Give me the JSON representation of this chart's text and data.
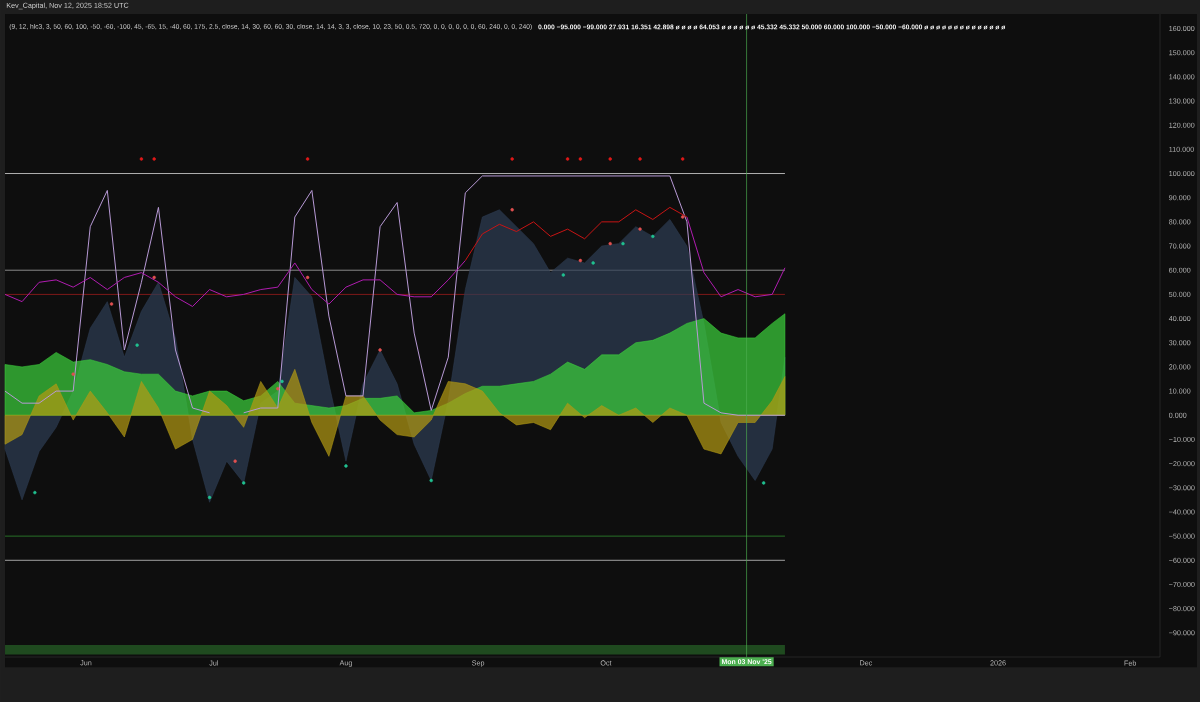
{
  "chart_data": {
    "type": "area",
    "title": "(9, 12, hlc3, 3, 50, 60, 100, -50, -60, -100, 45, -65, 15, -40, 60, 175, 2.5, close, 14, 30, 60, 60, 30, close, 14, 14, 3, 3, close, 10, 23, 50, 0.5, 720, 0, 0, 0, 0, 0, 0, 60, 240, 0, 0, 240)",
    "subtitle": "0.000 −95.000 −99.000 27.931 16.351 42.898 ø ø ø ø 64.053 ø ø ø ø ø ø 45.332 45.332 50.000 60.000 100.000 −50.000 −60.000 ø ø ø ø ø ø ø ø ø ø ø ø ø ø",
    "annotations": [
      "Kev_Capital, Nov 12, 2025 18:52 UTC"
    ],
    "x": [
      "2025-05-13",
      "2025-05-17",
      "2025-05-21",
      "2025-05-25",
      "2025-05-29",
      "2025-06-02",
      "2025-06-06",
      "2025-06-10",
      "2025-06-14",
      "2025-06-18",
      "2025-06-22",
      "2025-06-26",
      "2025-06-30",
      "2025-07-04",
      "2025-07-08",
      "2025-07-12",
      "2025-07-16",
      "2025-07-20",
      "2025-07-24",
      "2025-07-28",
      "2025-08-01",
      "2025-08-05",
      "2025-08-09",
      "2025-08-13",
      "2025-08-17",
      "2025-08-21",
      "2025-08-25",
      "2025-08-29",
      "2025-09-02",
      "2025-09-06",
      "2025-09-10",
      "2025-09-14",
      "2025-09-18",
      "2025-09-22",
      "2025-09-26",
      "2025-09-30",
      "2025-10-04",
      "2025-10-08",
      "2025-10-12",
      "2025-10-16",
      "2025-10-20",
      "2025-10-24",
      "2025-10-28",
      "2025-11-01",
      "2025-11-05",
      "2025-11-09",
      "2025-11-12"
    ],
    "series": [
      {
        "color": "#2e3d54",
        "values": [
          -14,
          -35,
          -15,
          -5,
          10,
          36,
          47,
          24,
          43,
          55,
          32,
          -10,
          -36,
          -19,
          -28,
          5,
          10,
          57,
          49,
          13,
          -19,
          13,
          27,
          13,
          -12,
          -27,
          6,
          52,
          82,
          85,
          78,
          71,
          59,
          65,
          63,
          70,
          71,
          78,
          74,
          81,
          70,
          38,
          -3,
          -17,
          -27,
          -14,
          24
        ]
      },
      {
        "color": "#3cd23c",
        "values": [
          21,
          20,
          21,
          26,
          22,
          23,
          21,
          18,
          17,
          17,
          10,
          8,
          10,
          10,
          6,
          8,
          14,
          5,
          4,
          3,
          4,
          7,
          7,
          8,
          1,
          2,
          5,
          9,
          12,
          12,
          13,
          14,
          17,
          22,
          19,
          25,
          25,
          30,
          31,
          34,
          38,
          40,
          34,
          32,
          32,
          38,
          42
        ]
      },
      {
        "color": "#b49a12",
        "values": [
          -12,
          -8,
          8,
          13,
          -2,
          10,
          1,
          -9,
          14,
          3,
          -14,
          -10,
          10,
          4,
          -5,
          14,
          3,
          19,
          -3,
          -17,
          8,
          8,
          -2,
          -8,
          -9,
          -2,
          14,
          13,
          10,
          1,
          -4,
          -3,
          -6,
          5,
          -1,
          4,
          0,
          3,
          -3,
          3,
          0,
          -14,
          -16,
          -3,
          -3,
          6,
          16
        ]
      },
      {
        "type": "line",
        "color": "#b89ad6",
        "values": [
          10,
          5,
          5,
          10,
          10,
          78,
          93,
          27,
          55,
          86,
          27,
          3,
          1,
          null,
          1,
          3,
          3,
          82,
          93,
          41,
          8,
          8,
          78,
          88,
          34,
          2,
          24,
          92,
          99,
          99,
          99,
          99,
          99,
          99,
          99,
          99,
          99,
          99,
          99,
          99,
          80,
          5,
          1,
          0,
          0,
          0,
          0
        ]
      },
      {
        "type": "line",
        "color": "#b01cb0",
        "values": [
          50,
          47,
          55,
          56,
          53,
          57,
          52,
          57,
          59,
          55,
          49,
          45,
          52,
          49,
          50,
          52,
          53,
          63,
          52,
          46,
          53,
          56,
          56,
          50,
          49,
          49,
          56,
          64,
          null,
          null,
          null,
          null,
          null,
          null,
          null,
          null,
          null,
          null,
          null,
          null,
          82,
          59,
          49,
          52,
          49,
          50,
          61
        ]
      },
      {
        "type": "line",
        "color": "#c81414",
        "values": [
          null,
          null,
          null,
          null,
          null,
          null,
          null,
          null,
          null,
          null,
          null,
          null,
          null,
          null,
          null,
          null,
          null,
          null,
          null,
          null,
          null,
          null,
          null,
          null,
          null,
          null,
          null,
          64,
          75,
          79,
          76,
          80,
          74,
          77,
          73,
          80,
          80,
          85,
          81,
          86,
          82,
          null,
          null,
          null,
          null,
          null,
          null
        ]
      },
      {
        "type": "scatter",
        "marker": "circle",
        "color": "#e05050",
        "x": [
          "2025-05-29",
          "2025-06-07",
          "2025-06-17",
          "2025-07-06",
          "2025-07-16",
          "2025-07-23",
          "2025-08-09",
          "2025-09-09",
          "2025-09-25",
          "2025-10-02",
          "2025-10-09",
          "2025-10-19"
        ],
        "values": [
          17,
          46,
          57,
          -19,
          11,
          57,
          27,
          85,
          64,
          71,
          77,
          82
        ]
      },
      {
        "type": "scatter",
        "marker": "circle",
        "color": "#e01818",
        "x": [
          "2025-06-14",
          "2025-06-17",
          "2025-07-23",
          "2025-09-09",
          "2025-09-22",
          "2025-09-25",
          "2025-10-02",
          "2025-10-09",
          "2025-10-19"
        ],
        "values": [
          106,
          106,
          106,
          106,
          106,
          106,
          106,
          106,
          106
        ]
      },
      {
        "type": "scatter",
        "marker": "circle",
        "color": "#20c090",
        "x": [
          "2025-05-20",
          "2025-06-13",
          "2025-06-30",
          "2025-07-08",
          "2025-07-17",
          "2025-08-01",
          "2025-08-21",
          "2025-09-21",
          "2025-09-28",
          "2025-10-05",
          "2025-10-12",
          "2025-11-07"
        ],
        "values": [
          -32,
          29,
          -34,
          -28,
          14,
          -21,
          -27,
          58,
          63,
          71,
          74,
          -28
        ]
      }
    ],
    "xlim": [
      "2025-05-13",
      "2026-02-08"
    ],
    "xticks": [
      {
        "value": "2025-06-01",
        "label": "Jun"
      },
      {
        "value": "2025-07-01",
        "label": "Jul"
      },
      {
        "value": "2025-08-01",
        "label": "Aug"
      },
      {
        "value": "2025-09-01",
        "label": "Sep"
      },
      {
        "value": "2025-10-01",
        "label": "Oct"
      },
      {
        "value": "2025-12-01",
        "label": "Dec"
      },
      {
        "value": "2026-01-01",
        "label": "2026"
      },
      {
        "value": "2026-02-01",
        "label": "Feb"
      }
    ],
    "ylim": [
      -100,
      166
    ],
    "yticks": [
      {
        "value": 160,
        "label": "160.000"
      },
      {
        "value": 150,
        "label": "150.000"
      },
      {
        "value": 140,
        "label": "140.000"
      },
      {
        "value": 130,
        "label": "130.000"
      },
      {
        "value": 120,
        "label": "120.000"
      },
      {
        "value": 110,
        "label": "110.000"
      },
      {
        "value": 100,
        "label": "100.000"
      },
      {
        "value": 90,
        "label": "90.000"
      },
      {
        "value": 80,
        "label": "80.000"
      },
      {
        "value": 70,
        "label": "70.000"
      },
      {
        "value": 60,
        "label": "60.000"
      },
      {
        "value": 50,
        "label": "50.000"
      },
      {
        "value": 40,
        "label": "40.000"
      },
      {
        "value": 30,
        "label": "30.000"
      },
      {
        "value": 20,
        "label": "20.000"
      },
      {
        "value": 10,
        "label": "10.000"
      },
      {
        "value": 0,
        "label": "0.000"
      },
      {
        "value": -10,
        "label": "−10.000"
      },
      {
        "value": -20,
        "label": "−20.000"
      },
      {
        "value": -30,
        "label": "−30.000"
      },
      {
        "value": -40,
        "label": "−40.000"
      },
      {
        "value": -50,
        "label": "−50.000"
      },
      {
        "value": -60,
        "label": "−60.000"
      },
      {
        "value": -70,
        "label": "−70.000"
      },
      {
        "value": -80,
        "label": "−80.000"
      },
      {
        "value": -90,
        "label": "−90.000"
      }
    ],
    "ref_lines": [
      {
        "axis": "y",
        "value": 100,
        "color": "#d8d8d8"
      },
      {
        "axis": "y",
        "value": 60,
        "color": "#a8a8a8"
      },
      {
        "axis": "y",
        "value": 50,
        "color": "#9c1c1c"
      },
      {
        "axis": "y",
        "value": -50,
        "color": "#2f8a2f"
      },
      {
        "axis": "y",
        "value": -60,
        "color": "#c8c8c8"
      },
      {
        "axis": "x",
        "value": "2025-11-03",
        "label": "Mon 03 Nov '25",
        "color": "#4caf50"
      }
    ],
    "bands": [
      {
        "axis": "y",
        "from": -95,
        "to": -99,
        "color": "#1f4a1f"
      }
    ]
  }
}
